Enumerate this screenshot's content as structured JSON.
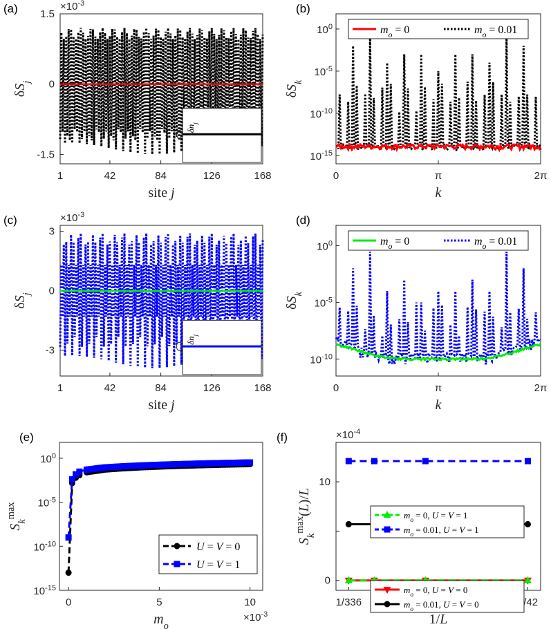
{
  "chart_data": [
    {
      "id": "a",
      "type": "line",
      "panel_label": "(a)",
      "xlabel": "site j",
      "ylabel": "δS_j",
      "y_exponent": "×10^-3",
      "x_ticks": [
        "1",
        "42",
        "84",
        "126",
        "168"
      ],
      "y_ticks": [
        "1.5",
        "0",
        "-1.5"
      ],
      "xlim": [
        1,
        168
      ],
      "ylim": [
        -0.0017,
        0.0015
      ],
      "series": [
        {
          "name": "m_o = 0",
          "color": "#ff0000",
          "style": "solid",
          "values_const": 0
        },
        {
          "name": "m_o = 0.01",
          "color": "#000000",
          "style": "dotted",
          "oscillation_amplitude": 0.0012,
          "min_dip": -0.0015
        }
      ],
      "inset_label": "δn_j"
    },
    {
      "id": "b",
      "type": "line",
      "panel_label": "(b)",
      "yscale": "log",
      "xlabel": "k",
      "ylabel": "δS_k",
      "x_ticks": [
        "0",
        "π",
        "2π"
      ],
      "y_ticks": [
        "10^0",
        "10^-5",
        "10^-10",
        "10^-15"
      ],
      "ylim": [
        1e-16,
        100.0
      ],
      "legend": [
        "m_o = 0",
        "m_o = 0.01"
      ],
      "series": [
        {
          "name": "m_o = 0",
          "color": "#ff0000",
          "style": "solid",
          "baseline": 1e-14
        },
        {
          "name": "m_o = 0.01",
          "color": "#000000",
          "style": "dotted",
          "baseline": 1e-14,
          "peaks_k_over_2pi": [
            0.083,
            0.167,
            0.25,
            0.333,
            0.417,
            0.5,
            0.583,
            0.667,
            0.75,
            0.833,
            0.917
          ],
          "peaks_value": [
            0.01,
            0.2,
            0.0001,
            0.001,
            0.001,
            1e-05,
            0.001,
            0.001,
            0.0001,
            0.2,
            0.01
          ]
        }
      ]
    },
    {
      "id": "c",
      "type": "line",
      "panel_label": "(c)",
      "xlabel": "site j",
      "ylabel": "δS_j",
      "y_exponent": "×10^-3",
      "x_ticks": [
        "1",
        "42",
        "84",
        "126",
        "168"
      ],
      "y_ticks": [
        "3",
        "0",
        "-3"
      ],
      "xlim": [
        1,
        168
      ],
      "ylim": [
        -0.0043,
        0.0033
      ],
      "series": [
        {
          "name": "m_o = 0",
          "color": "#00ee00",
          "style": "solid",
          "values_const": 0
        },
        {
          "name": "m_o = 0.01",
          "color": "#0000ff",
          "style": "dotted",
          "oscillation_amplitude": 0.0029,
          "min_dip": -0.0039
        }
      ],
      "inset_label": "δn_j"
    },
    {
      "id": "d",
      "type": "line",
      "panel_label": "(d)",
      "yscale": "log",
      "xlabel": "k",
      "ylabel": "δS_k",
      "x_ticks": [
        "0",
        "π",
        "2π"
      ],
      "y_ticks": [
        "10^0",
        "10^-5",
        "10^-10"
      ],
      "legend": [
        "m_o = 0",
        "m_o = 0.01"
      ],
      "series": [
        {
          "name": "m_o = 0",
          "color": "#00ee00",
          "style": "solid",
          "baseline": 1e-10
        },
        {
          "name": "m_o = 0.01",
          "color": "#0000ff",
          "style": "dotted",
          "baseline": 1e-10
        }
      ]
    },
    {
      "id": "e",
      "type": "line",
      "panel_label": "(e)",
      "yscale": "log",
      "xlabel": "m_o",
      "ylabel": "S_k^max",
      "x_exponent": "×10^-3",
      "x_ticks": [
        "0",
        "5",
        "10"
      ],
      "y_ticks": [
        "10^0",
        "10^-5",
        "10^-10",
        "10^-15"
      ],
      "xlim": [
        -0.0005,
        0.0107
      ],
      "ylim": [
        1e-15,
        100.0
      ],
      "legend": [
        "U = V = 0",
        "U = V = 1"
      ],
      "series": [
        {
          "name": "U = V = 0",
          "color": "#000000",
          "marker": "circle",
          "x": [
            0,
            0.0002,
            0.0004,
            0.0006,
            0.001,
            0.002,
            0.003,
            0.004,
            0.005,
            0.006,
            0.007,
            0.008,
            0.009,
            0.01
          ],
          "y": [
            1e-13,
            0.0015,
            0.006,
            0.012,
            0.025,
            0.05,
            0.07,
            0.09,
            0.11,
            0.13,
            0.15,
            0.17,
            0.19,
            0.21
          ]
        },
        {
          "name": "U = V = 1",
          "color": "#0000ff",
          "marker": "square",
          "x": [
            0,
            0.0002,
            0.0004,
            0.0006,
            0.001,
            0.002,
            0.003,
            0.004,
            0.005,
            0.006,
            0.007,
            0.008,
            0.009,
            0.01
          ],
          "y": [
            1e-09,
            0.004,
            0.015,
            0.03,
            0.05,
            0.09,
            0.12,
            0.15,
            0.18,
            0.21,
            0.24,
            0.27,
            0.3,
            0.33
          ]
        }
      ]
    },
    {
      "id": "f",
      "type": "line",
      "panel_label": "(f)",
      "xlabel": "1/L",
      "ylabel": "S_k^max(L)/L",
      "y_exponent": "×10^-4",
      "x_ticks": [
        "1/336",
        "1/84",
        "1/42"
      ],
      "y_ticks": [
        "10",
        "5",
        "0"
      ],
      "x": [
        0.002976,
        0.005952,
        0.011905,
        0.02381
      ],
      "ylim": [
        -0.0001,
        0.0014
      ],
      "legend_groups": [
        [
          "m_o = 0, U = V = 1",
          "m_o = 0.01, U = V = 1"
        ],
        [
          "m_o = 0, U = V = 0",
          "m_o = 0.01, U = V = 0"
        ]
      ],
      "series": [
        {
          "name": "m_o = 0, U = V = 1",
          "color": "#00ee00",
          "marker": "triangle-up",
          "style": "dashed",
          "values": [
            0,
            0,
            0,
            0
          ]
        },
        {
          "name": "m_o = 0.01, U = V = 1",
          "color": "#0000ff",
          "marker": "square",
          "style": "dashed",
          "values": [
            0.00121,
            0.00121,
            0.00121,
            0.00121
          ]
        },
        {
          "name": "m_o = 0, U = V = 0",
          "color": "#ff0000",
          "marker": "triangle-down",
          "style": "solid",
          "values": [
            0,
            0,
            0,
            0
          ]
        },
        {
          "name": "m_o = 0.01, U = V = 0",
          "color": "#000000",
          "marker": "circle",
          "style": "solid",
          "values": [
            0.00057,
            0.00057,
            0.00057,
            0.00057
          ]
        }
      ]
    }
  ]
}
